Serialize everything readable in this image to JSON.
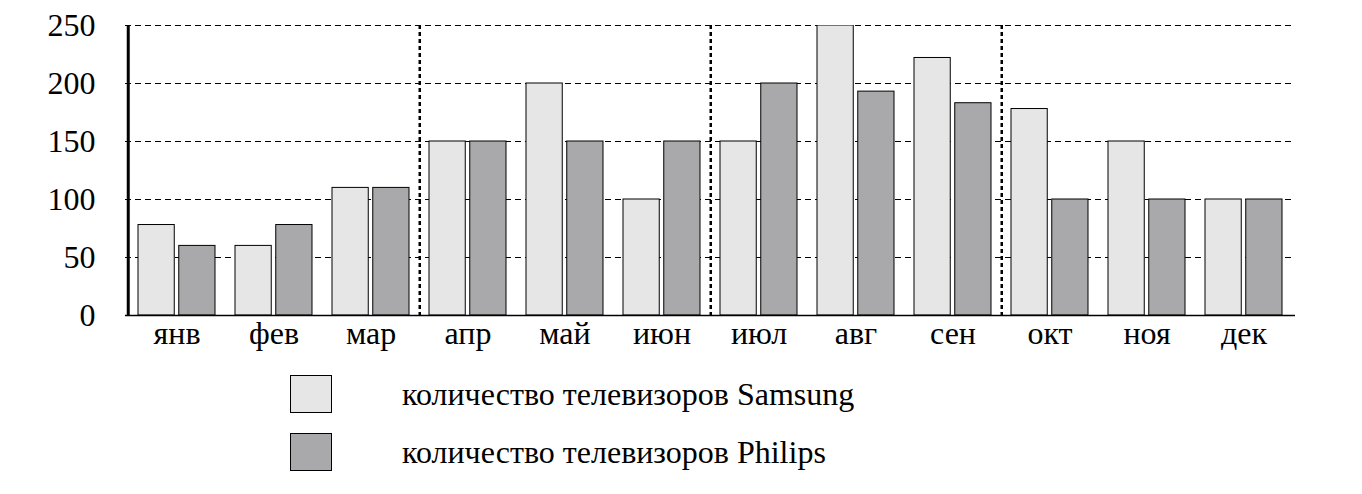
{
  "chart_data": {
    "type": "bar",
    "categories": [
      "янв",
      "фев",
      "мар",
      "апр",
      "май",
      "июн",
      "июл",
      "авг",
      "сен",
      "окт",
      "ноя",
      "дек"
    ],
    "series": [
      {
        "name": "количество телевизоров Samsung",
        "color": "#e6e6e6",
        "values": [
          78,
          60,
          110,
          150,
          200,
          100,
          150,
          250,
          222,
          178,
          150,
          100
        ]
      },
      {
        "name": "количество телевизоров Philips",
        "color": "#a9a9ab",
        "values": [
          60,
          78,
          110,
          150,
          150,
          150,
          200,
          193,
          183,
          100,
          100,
          100
        ]
      }
    ],
    "ylim": [
      0,
      250
    ],
    "yticks": [
      0,
      50,
      100,
      150,
      200,
      250
    ],
    "grid": true,
    "legend": "bottom"
  }
}
